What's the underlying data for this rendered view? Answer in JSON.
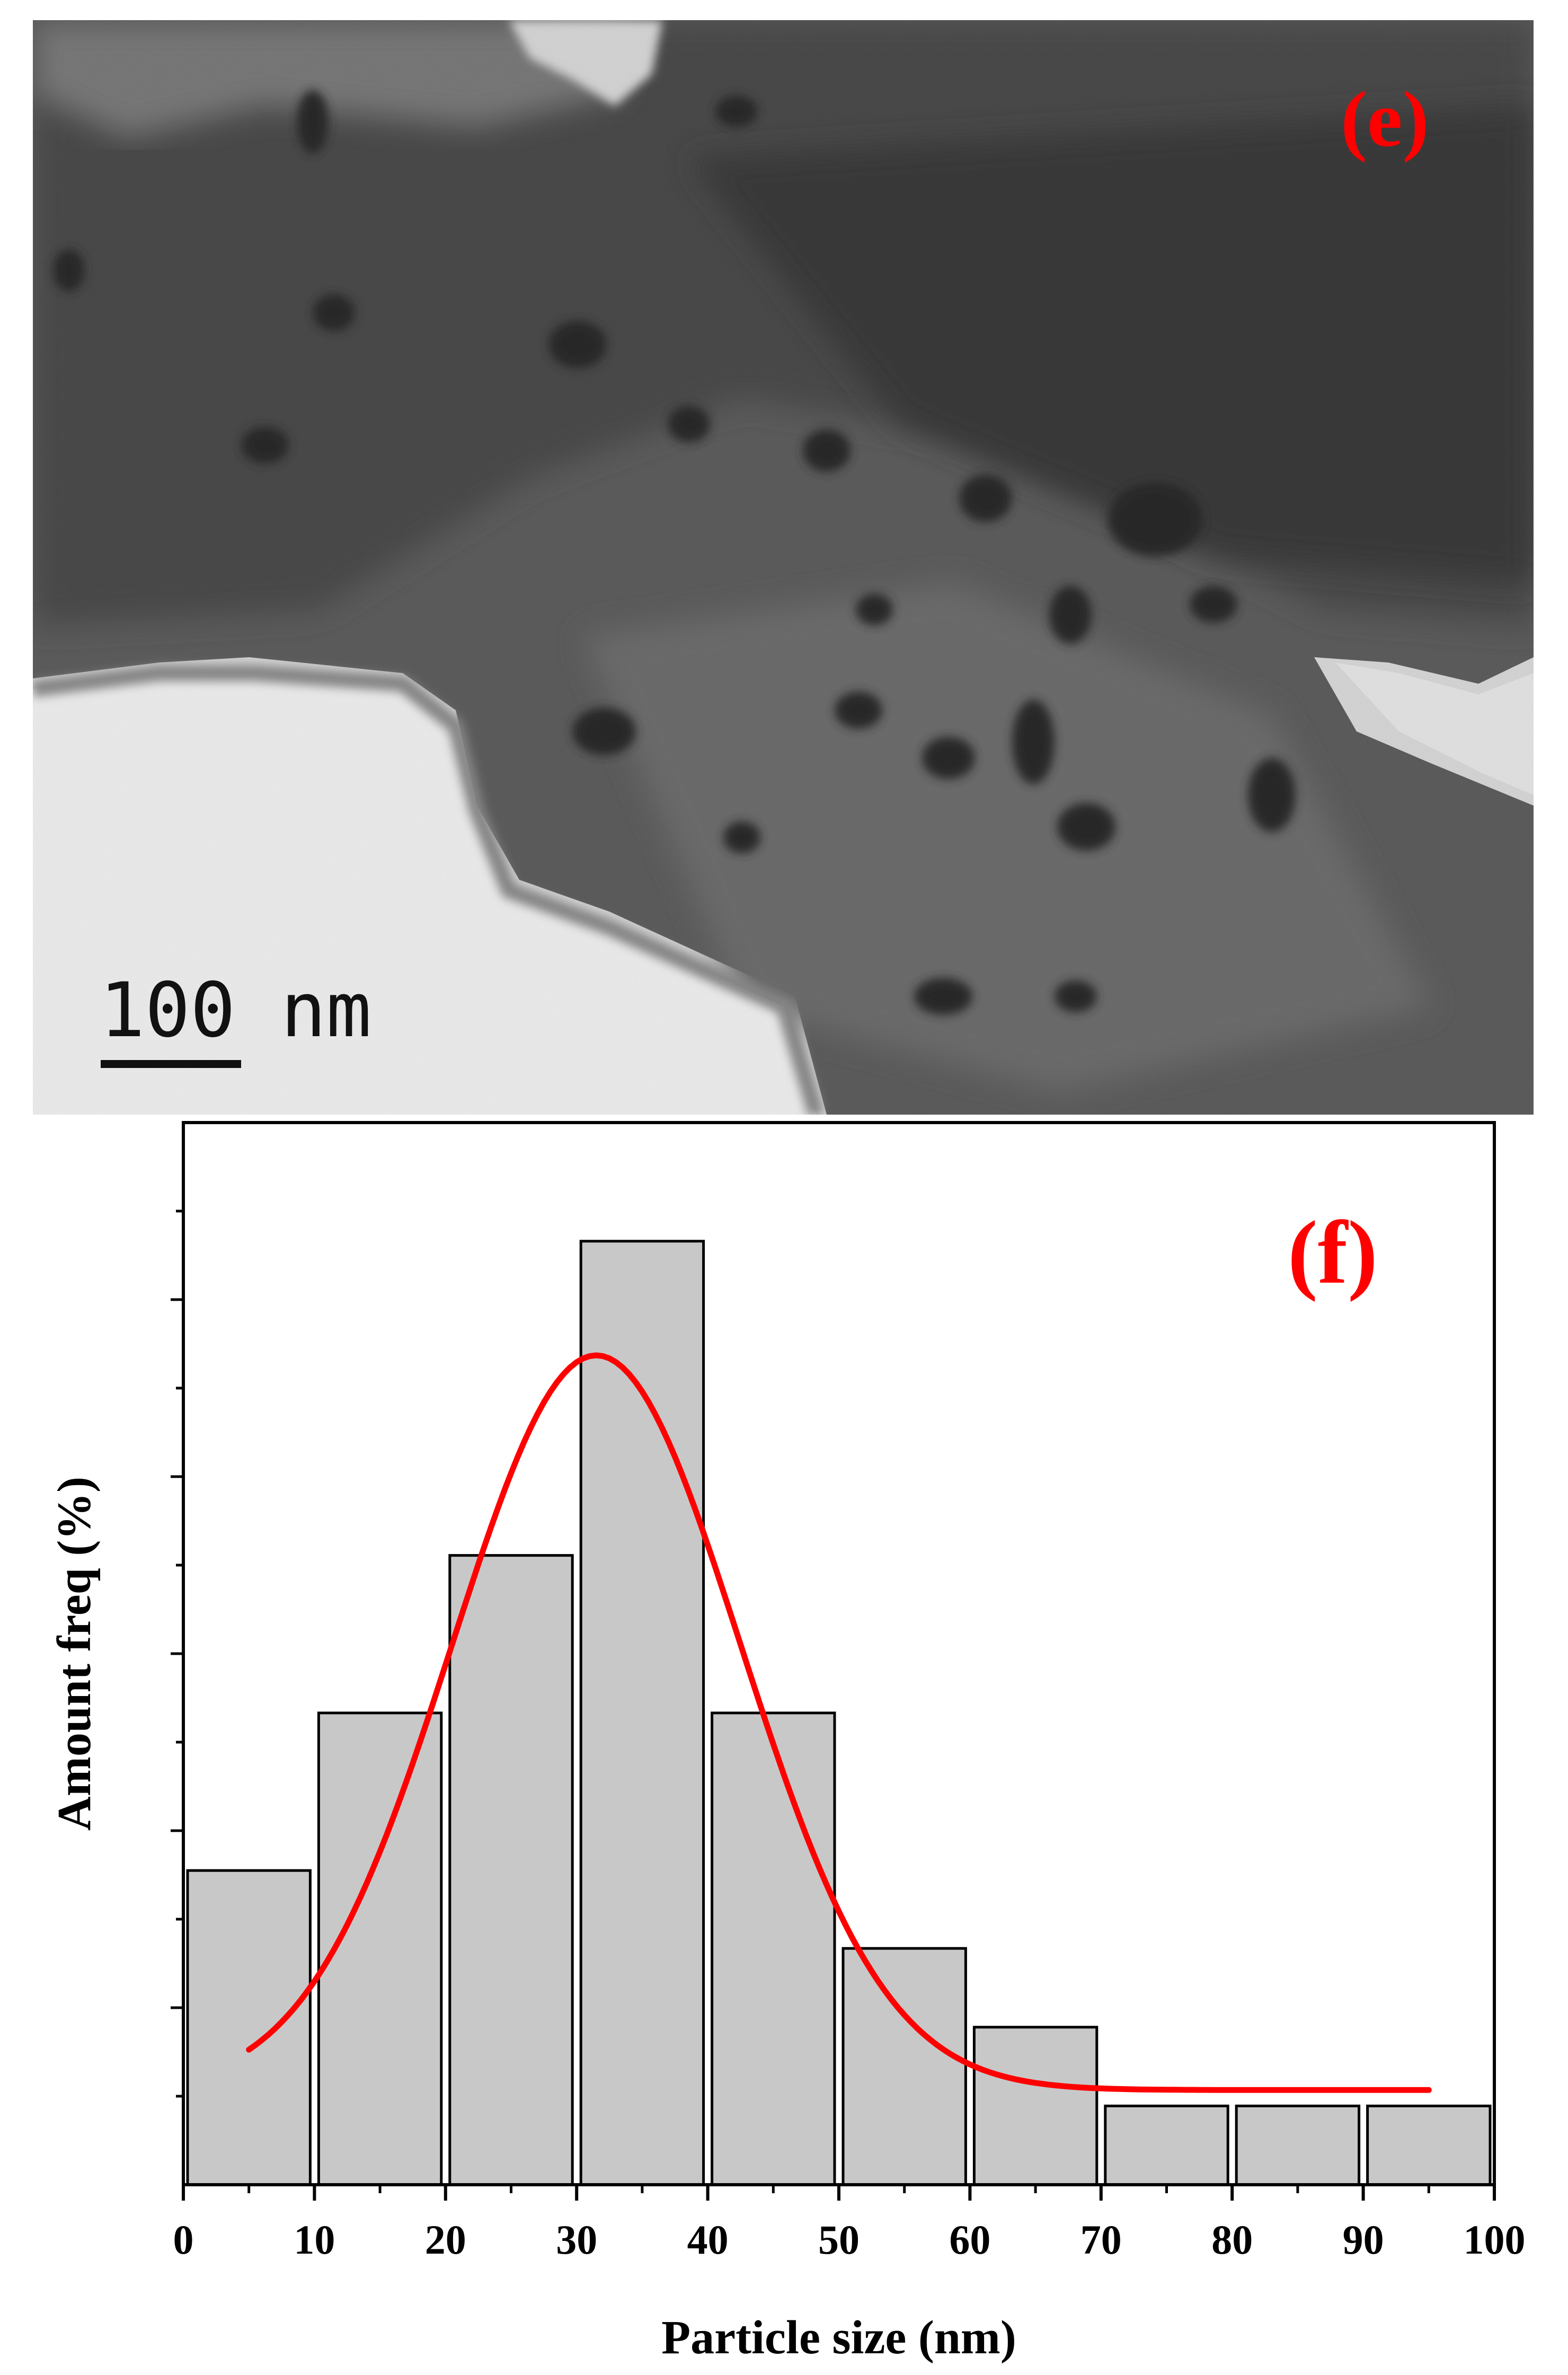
{
  "panel_e": {
    "label": "(e)",
    "scale_bar_text": "100 nm",
    "label_color": "#ff0000"
  },
  "panel_f": {
    "label": "(f)",
    "label_color": "#ff0000"
  },
  "chart_data": {
    "type": "bar",
    "title": "",
    "xlabel": "Particle size (nm)",
    "ylabel": "Amount freq (%)",
    "xlim": [
      0,
      100
    ],
    "ylim": [
      0,
      12
    ],
    "x_ticks": [
      0,
      10,
      20,
      30,
      40,
      50,
      60,
      70,
      80,
      90,
      100
    ],
    "y_tick_labels_shown": false,
    "bins": [
      [
        0,
        10
      ],
      [
        10,
        20
      ],
      [
        20,
        30
      ],
      [
        30,
        40
      ],
      [
        40,
        50
      ],
      [
        50,
        60
      ],
      [
        60,
        70
      ],
      [
        70,
        80
      ],
      [
        80,
        90
      ],
      [
        90,
        100
      ]
    ],
    "values": [
      3.55,
      5.33,
      7.11,
      10.66,
      5.33,
      2.67,
      1.78,
      0.89,
      0.89,
      0.89
    ],
    "bar_color": "#c8c8c8",
    "fit_curve": {
      "type": "gaussian",
      "color": "#ff0000",
      "x_range": [
        5,
        95
      ],
      "center": 31.5,
      "amplitude": 8.3,
      "width_sigma": 11.0,
      "offset": 1.07
    }
  }
}
